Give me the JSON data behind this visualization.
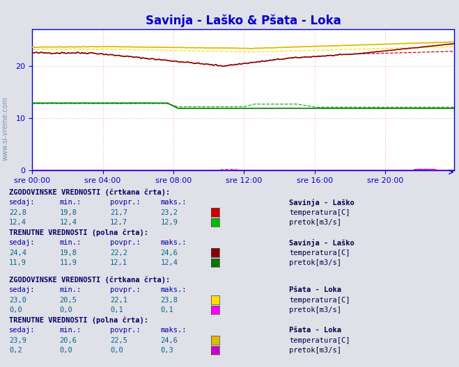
{
  "title": "Savinja - Laško & Pšata - Loka",
  "title_color": "#0000cc",
  "title_fontsize": 12,
  "plot_bg_color": "#ffffff",
  "fig_width": 6.59,
  "fig_height": 5.28,
  "dpi": 100,
  "xlim": [
    0,
    287
  ],
  "ylim": [
    0,
    27
  ],
  "yticks": [
    0,
    10,
    20
  ],
  "xtick_labels": [
    "sre 00:00",
    "sre 04:00",
    "sre 08:00",
    "sre 12:00",
    "sre 16:00",
    "sre 20:00"
  ],
  "xtick_positions": [
    0,
    48,
    96,
    144,
    192,
    240
  ],
  "grid_color": "#ffaaaa",
  "grid_style": ":",
  "axis_color": "#0000cc",
  "tick_color": "#0000cc",
  "tick_fontsize": 8,
  "savinja_temp_hist_color": "#cc0000",
  "savinja_temp_curr_color": "#880000",
  "savinja_flow_hist_color": "#00bb00",
  "savinja_flow_curr_color": "#007700",
  "psata_temp_hist_color": "#ffdd00",
  "psata_temp_curr_color": "#ddbb00",
  "psata_flow_hist_color": "#ff00ff",
  "psata_flow_curr_color": "#cc00cc",
  "panel_bg": "#e0e0e8",
  "header_color": "#000066",
  "col_header_color": "#0000aa",
  "value_color": "#006688",
  "station_color": "#000044",
  "label_color": "#000044",
  "sections": [
    {
      "header": "ZGODOVINSKE VREDNOSTI (črtkana črta):",
      "station": "Savinja - Laško",
      "rows": [
        {
          "sedaj": "22,8",
          "min": "19,8",
          "povpr": "21,7",
          "maks": "23,2",
          "label": "temperatura[C]",
          "swatch": "#cc0000"
        },
        {
          "sedaj": "12,4",
          "min": "12,4",
          "povpr": "12,7",
          "maks": "12,9",
          "label": "pretok[m3/s]",
          "swatch": "#00bb00"
        }
      ]
    },
    {
      "header": "TRENUTNE VREDNOSTI (polna črta):",
      "station": "Savinja - Laško",
      "rows": [
        {
          "sedaj": "24,4",
          "min": "19,8",
          "povpr": "22,2",
          "maks": "24,6",
          "label": "temperatura[C]",
          "swatch": "#880000"
        },
        {
          "sedaj": "11,9",
          "min": "11,9",
          "povpr": "12,1",
          "maks": "12,4",
          "label": "pretok[m3/s]",
          "swatch": "#007700"
        }
      ]
    },
    {
      "header": "ZGODOVINSKE VREDNOSTI (črtkana črta):",
      "station": "Pšata - Loka",
      "rows": [
        {
          "sedaj": "23,0",
          "min": "20,5",
          "povpr": "22,1",
          "maks": "23,8",
          "label": "temperatura[C]",
          "swatch": "#ffdd00"
        },
        {
          "sedaj": "0,0",
          "min": "0,0",
          "povpr": "0,1",
          "maks": "0,1",
          "label": "pretok[m3/s]",
          "swatch": "#ff00ff"
        }
      ]
    },
    {
      "header": "TRENUTNE VREDNOSTI (polna črta):",
      "station": "Pšata - Loka",
      "rows": [
        {
          "sedaj": "23,9",
          "min": "20,6",
          "povpr": "22,5",
          "maks": "24,6",
          "label": "temperatura[C]",
          "swatch": "#ddbb00"
        },
        {
          "sedaj": "0,2",
          "min": "0,0",
          "povpr": "0,0",
          "maks": "0,3",
          "label": "pretok[m3/s]",
          "swatch": "#cc00cc"
        }
      ]
    }
  ]
}
